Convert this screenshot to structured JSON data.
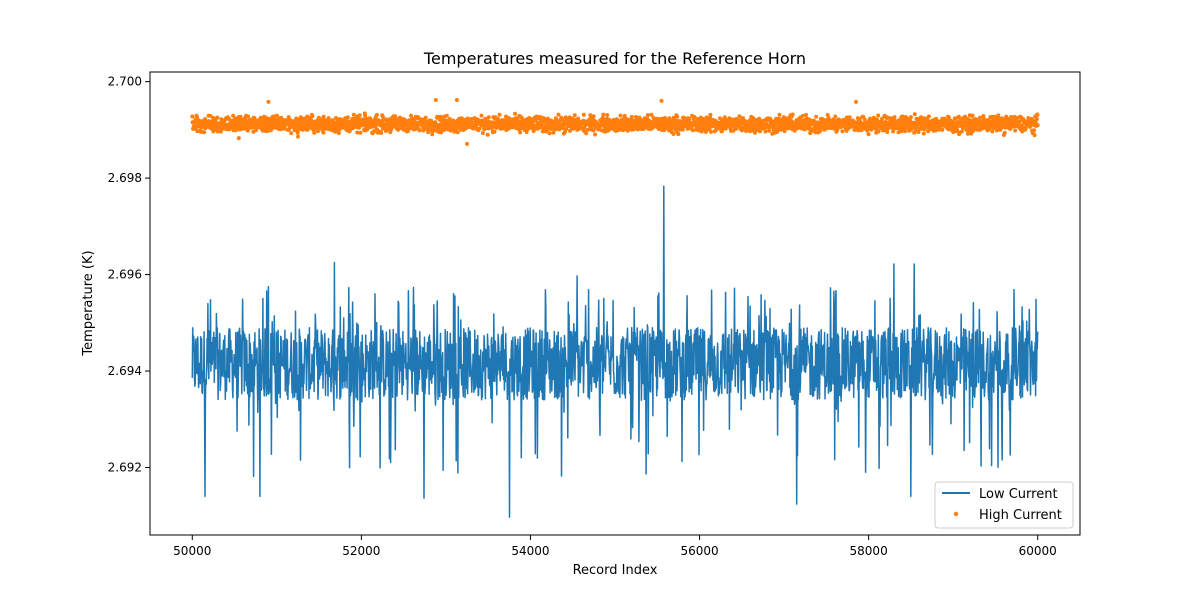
{
  "chart_data": {
    "type": "line",
    "title": "Temperatures measured for the Reference Horn",
    "xlabel": "Record Index",
    "ylabel": "Temperature (K)",
    "xlim": [
      49500,
      60500
    ],
    "ylim": [
      2.6906,
      2.7002
    ],
    "xticks": [
      50000,
      52000,
      54000,
      56000,
      58000,
      60000
    ],
    "xtick_labels": [
      "50000",
      "52000",
      "54000",
      "56000",
      "58000",
      "60000"
    ],
    "yticks": [
      2.692,
      2.694,
      2.696,
      2.698,
      2.7
    ],
    "ytick_labels": [
      "2.692",
      "2.694",
      "2.696",
      "2.698",
      "2.700"
    ],
    "grid": false,
    "legend_position": "lower-right",
    "series": [
      {
        "name": "Low Current",
        "style": "line",
        "color": "#1f77b4",
        "x_range": [
          50000,
          60000
        ],
        "mean": 2.6941,
        "band_low": 2.6934,
        "band_high": 2.6949,
        "notable_peaks": [
          {
            "x": 51680,
            "y": 2.69625
          },
          {
            "x": 55580,
            "y": 2.69783
          },
          {
            "x": 58300,
            "y": 2.69622
          },
          {
            "x": 58540,
            "y": 2.69622
          },
          {
            "x": 50900,
            "y": 2.69575
          },
          {
            "x": 54550,
            "y": 2.69597
          }
        ],
        "notable_troughs": [
          {
            "x": 50150,
            "y": 2.6914
          },
          {
            "x": 50800,
            "y": 2.6914
          },
          {
            "x": 52740,
            "y": 2.69136
          },
          {
            "x": 53750,
            "y": 2.69097
          },
          {
            "x": 57150,
            "y": 2.69124
          },
          {
            "x": 58500,
            "y": 2.6914
          }
        ]
      },
      {
        "name": "High Current",
        "style": "scatter",
        "color": "#ff7f0e",
        "x_range": [
          50000,
          60000
        ],
        "mean": 2.69912,
        "band_low": 2.69898,
        "band_high": 2.69928,
        "notable_highs": [
          {
            "x": 50900,
            "y": 2.69958
          },
          {
            "x": 52880,
            "y": 2.69962
          },
          {
            "x": 53130,
            "y": 2.69962
          },
          {
            "x": 55550,
            "y": 2.6996
          },
          {
            "x": 57850,
            "y": 2.69958
          }
        ],
        "notable_lows": [
          {
            "x": 53250,
            "y": 2.69871
          },
          {
            "x": 50550,
            "y": 2.69883
          },
          {
            "x": 51250,
            "y": 2.69886
          }
        ]
      }
    ]
  }
}
